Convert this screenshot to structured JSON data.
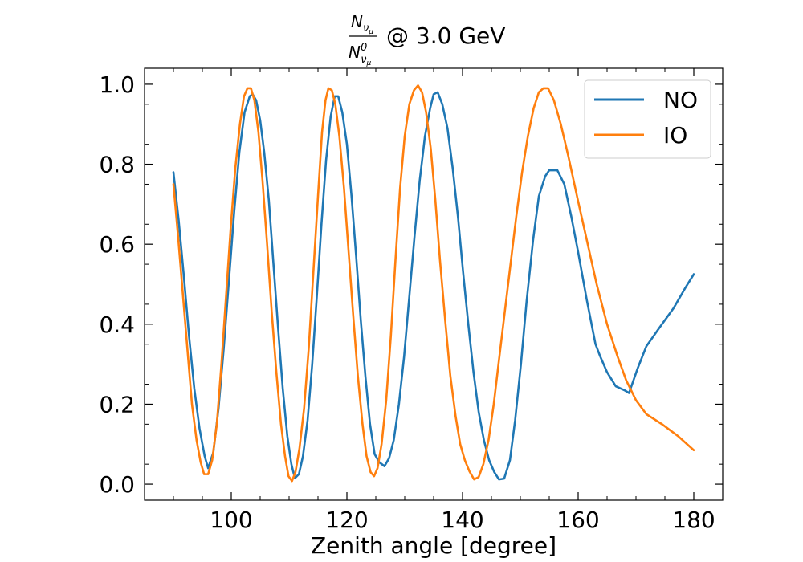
{
  "chart_data": {
    "type": "line",
    "title": {
      "numerator_symbol": "N",
      "numerator_sub": "ν",
      "numerator_subsub": "μ",
      "denominator_symbol": "N",
      "denominator_sup": "0",
      "denominator_sub": "ν",
      "denominator_subsub": "μ",
      "suffix": "@ 3.0 GeV"
    },
    "xlabel": "Zenith angle [degree]",
    "ylabel": "",
    "xlim": [
      85,
      185
    ],
    "ylim": [
      -0.04,
      1.04
    ],
    "xticks": [
      100,
      120,
      140,
      160,
      180
    ],
    "yticks": [
      0.0,
      0.2,
      0.4,
      0.6,
      0.8,
      1.0
    ],
    "xtick_labels": [
      "100",
      "120",
      "140",
      "160",
      "180"
    ],
    "ytick_labels": [
      "0.0",
      "0.2",
      "0.4",
      "0.6",
      "0.8",
      "1.0"
    ],
    "grid": false,
    "legend_position": "top-right",
    "series": [
      {
        "name": "NO",
        "color": "#1f77b4",
        "points": [
          [
            90.0,
            0.78
          ],
          [
            90.9,
            0.66
          ],
          [
            91.8,
            0.52
          ],
          [
            92.7,
            0.37
          ],
          [
            93.6,
            0.24
          ],
          [
            94.5,
            0.14
          ],
          [
            95.4,
            0.07
          ],
          [
            96.0,
            0.04
          ],
          [
            96.9,
            0.08
          ],
          [
            97.8,
            0.19
          ],
          [
            98.7,
            0.34
          ],
          [
            99.6,
            0.51
          ],
          [
            100.5,
            0.68
          ],
          [
            101.4,
            0.83
          ],
          [
            102.3,
            0.93
          ],
          [
            103.2,
            0.97
          ],
          [
            103.7,
            0.975
          ],
          [
            104.3,
            0.96
          ],
          [
            105.0,
            0.91
          ],
          [
            105.7,
            0.83
          ],
          [
            106.5,
            0.71
          ],
          [
            107.3,
            0.55
          ],
          [
            108.1,
            0.39
          ],
          [
            108.9,
            0.24
          ],
          [
            109.7,
            0.12
          ],
          [
            110.4,
            0.05
          ],
          [
            111.0,
            0.015
          ],
          [
            111.7,
            0.025
          ],
          [
            112.4,
            0.07
          ],
          [
            113.2,
            0.16
          ],
          [
            114.0,
            0.3
          ],
          [
            114.8,
            0.47
          ],
          [
            115.6,
            0.65
          ],
          [
            116.4,
            0.81
          ],
          [
            117.2,
            0.92
          ],
          [
            117.9,
            0.97
          ],
          [
            118.5,
            0.97
          ],
          [
            119.2,
            0.93
          ],
          [
            120.0,
            0.85
          ],
          [
            120.8,
            0.72
          ],
          [
            121.6,
            0.57
          ],
          [
            122.4,
            0.41
          ],
          [
            123.2,
            0.27
          ],
          [
            124.0,
            0.15
          ],
          [
            124.8,
            0.075
          ],
          [
            125.6,
            0.055
          ],
          [
            126.5,
            0.045
          ],
          [
            127.3,
            0.065
          ],
          [
            128.1,
            0.11
          ],
          [
            129.0,
            0.2
          ],
          [
            129.9,
            0.32
          ],
          [
            130.8,
            0.47
          ],
          [
            131.7,
            0.62
          ],
          [
            132.6,
            0.76
          ],
          [
            133.5,
            0.87
          ],
          [
            134.4,
            0.94
          ],
          [
            135.0,
            0.975
          ],
          [
            135.7,
            0.98
          ],
          [
            136.5,
            0.95
          ],
          [
            137.4,
            0.89
          ],
          [
            138.3,
            0.79
          ],
          [
            139.2,
            0.67
          ],
          [
            140.1,
            0.53
          ],
          [
            141.0,
            0.4
          ],
          [
            141.9,
            0.28
          ],
          [
            142.8,
            0.18
          ],
          [
            143.7,
            0.11
          ],
          [
            144.6,
            0.06
          ],
          [
            145.5,
            0.03
          ],
          [
            146.3,
            0.012
          ],
          [
            147.2,
            0.014
          ],
          [
            148.2,
            0.06
          ],
          [
            149.1,
            0.16
          ],
          [
            150.1,
            0.3
          ],
          [
            151.1,
            0.46
          ],
          [
            152.2,
            0.61
          ],
          [
            153.2,
            0.72
          ],
          [
            154.3,
            0.77
          ],
          [
            155.0,
            0.785
          ],
          [
            156.4,
            0.785
          ],
          [
            157.6,
            0.75
          ],
          [
            158.8,
            0.67
          ],
          [
            160.0,
            0.58
          ],
          [
            161.5,
            0.46
          ],
          [
            163.0,
            0.35
          ],
          [
            163.8,
            0.32
          ],
          [
            165.0,
            0.28
          ],
          [
            166.5,
            0.245
          ],
          [
            168.0,
            0.235
          ],
          [
            168.8,
            0.228
          ],
          [
            170.3,
            0.29
          ],
          [
            171.8,
            0.345
          ],
          [
            174.0,
            0.39
          ],
          [
            176.5,
            0.44
          ],
          [
            178.5,
            0.49
          ],
          [
            180.0,
            0.525
          ]
        ]
      },
      {
        "name": "IO",
        "color": "#ff7f0e",
        "points": [
          [
            90.0,
            0.75
          ],
          [
            90.8,
            0.62
          ],
          [
            91.6,
            0.48
          ],
          [
            92.4,
            0.34
          ],
          [
            93.2,
            0.2
          ],
          [
            94.0,
            0.11
          ],
          [
            94.7,
            0.055
          ],
          [
            95.3,
            0.025
          ],
          [
            96.0,
            0.025
          ],
          [
            96.7,
            0.06
          ],
          [
            97.5,
            0.15
          ],
          [
            98.3,
            0.3
          ],
          [
            99.1,
            0.47
          ],
          [
            99.9,
            0.64
          ],
          [
            100.7,
            0.79
          ],
          [
            101.5,
            0.9
          ],
          [
            102.2,
            0.97
          ],
          [
            102.8,
            0.99
          ],
          [
            103.4,
            0.99
          ],
          [
            104.0,
            0.96
          ],
          [
            104.7,
            0.88
          ],
          [
            105.4,
            0.76
          ],
          [
            106.2,
            0.6
          ],
          [
            107.0,
            0.43
          ],
          [
            107.8,
            0.28
          ],
          [
            108.6,
            0.15
          ],
          [
            109.3,
            0.07
          ],
          [
            109.9,
            0.02
          ],
          [
            110.5,
            0.008
          ],
          [
            111.1,
            0.03
          ],
          [
            111.8,
            0.09
          ],
          [
            112.6,
            0.19
          ],
          [
            113.4,
            0.34
          ],
          [
            114.2,
            0.53
          ],
          [
            115.0,
            0.72
          ],
          [
            115.7,
            0.88
          ],
          [
            116.3,
            0.96
          ],
          [
            116.8,
            0.99
          ],
          [
            117.4,
            0.985
          ],
          [
            118.0,
            0.95
          ],
          [
            118.7,
            0.87
          ],
          [
            119.5,
            0.74
          ],
          [
            120.3,
            0.58
          ],
          [
            121.1,
            0.42
          ],
          [
            121.9,
            0.27
          ],
          [
            122.7,
            0.15
          ],
          [
            123.4,
            0.07
          ],
          [
            124.1,
            0.03
          ],
          [
            124.7,
            0.02
          ],
          [
            125.3,
            0.04
          ],
          [
            126.0,
            0.1
          ],
          [
            126.8,
            0.21
          ],
          [
            127.6,
            0.37
          ],
          [
            128.4,
            0.56
          ],
          [
            129.2,
            0.74
          ],
          [
            130.0,
            0.87
          ],
          [
            130.8,
            0.95
          ],
          [
            131.6,
            0.985
          ],
          [
            132.3,
            0.997
          ],
          [
            133.0,
            0.98
          ],
          [
            133.7,
            0.93
          ],
          [
            134.5,
            0.84
          ],
          [
            135.3,
            0.71
          ],
          [
            136.1,
            0.56
          ],
          [
            137.0,
            0.41
          ],
          [
            137.9,
            0.27
          ],
          [
            138.8,
            0.17
          ],
          [
            139.6,
            0.1
          ],
          [
            140.4,
            0.06
          ],
          [
            141.2,
            0.032
          ],
          [
            142.0,
            0.012
          ],
          [
            142.8,
            0.018
          ],
          [
            143.6,
            0.05
          ],
          [
            144.5,
            0.11
          ],
          [
            145.4,
            0.2
          ],
          [
            146.3,
            0.31
          ],
          [
            147.3,
            0.43
          ],
          [
            148.3,
            0.55
          ],
          [
            149.3,
            0.67
          ],
          [
            150.3,
            0.78
          ],
          [
            151.3,
            0.87
          ],
          [
            152.3,
            0.94
          ],
          [
            153.2,
            0.98
          ],
          [
            154.0,
            0.99
          ],
          [
            154.8,
            0.99
          ],
          [
            155.8,
            0.96
          ],
          [
            157.0,
            0.9
          ],
          [
            158.3,
            0.82
          ],
          [
            159.8,
            0.72
          ],
          [
            161.5,
            0.61
          ],
          [
            163.2,
            0.5
          ],
          [
            165.0,
            0.4
          ],
          [
            166.8,
            0.32
          ],
          [
            168.3,
            0.26
          ],
          [
            170.0,
            0.21
          ],
          [
            171.8,
            0.175
          ],
          [
            174.5,
            0.15
          ],
          [
            177.3,
            0.12
          ],
          [
            180.0,
            0.085
          ]
        ]
      }
    ]
  }
}
